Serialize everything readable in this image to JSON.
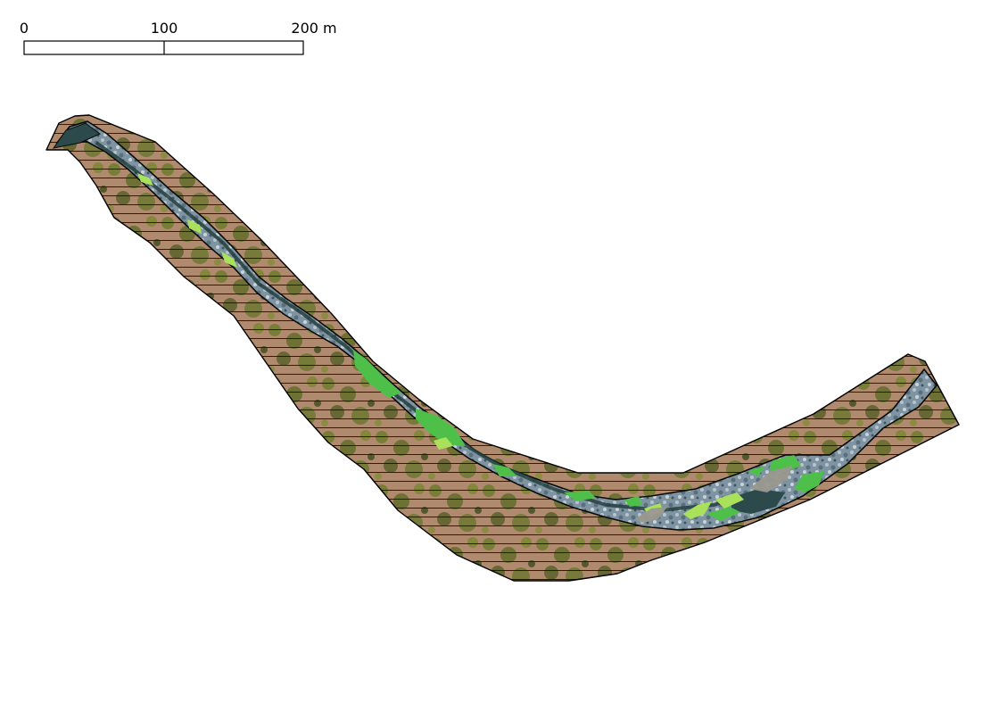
{
  "scale_bar": {
    "labels": [
      "0",
      "100",
      "200 m"
    ]
  },
  "legend_colors": {
    "bank_soil": "#b08a6e",
    "bank_vegetation": "#6f7a2e",
    "hatch_lines": "#1a1208",
    "channel_water": "#2c4a4c",
    "gravel_bar": "#8a9fae",
    "green_patches": "#4ec04a",
    "light_green_patches": "#a9e25a",
    "grey_patches": "#9a9890",
    "outline": "#000000"
  }
}
